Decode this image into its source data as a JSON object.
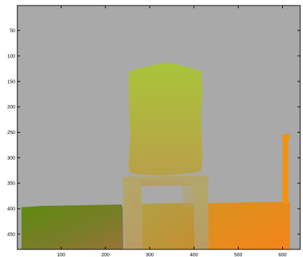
{
  "figure": {
    "background_color": "#a9a9a9",
    "axis_color": "#000000",
    "x_tick_labels": [
      "100",
      "200",
      "300",
      "400",
      "500",
      "600"
    ],
    "y_tick_labels": [
      "50",
      "100",
      "150",
      "200",
      "250",
      "300",
      "350",
      "400",
      "450"
    ],
    "x_range": [
      1,
      640
    ],
    "y_range": [
      1,
      480
    ],
    "colors": {
      "chair_top": "#a9c23c",
      "chair_mid": "#b4b040",
      "chair_low": "#b9a048",
      "legs": "#b6a368",
      "left_box_left": "#5d8a0c",
      "left_box_right": "#947838",
      "middle_band": "#bb9636",
      "right_band": "#f2891c",
      "right_pole": "#f3920f"
    }
  }
}
